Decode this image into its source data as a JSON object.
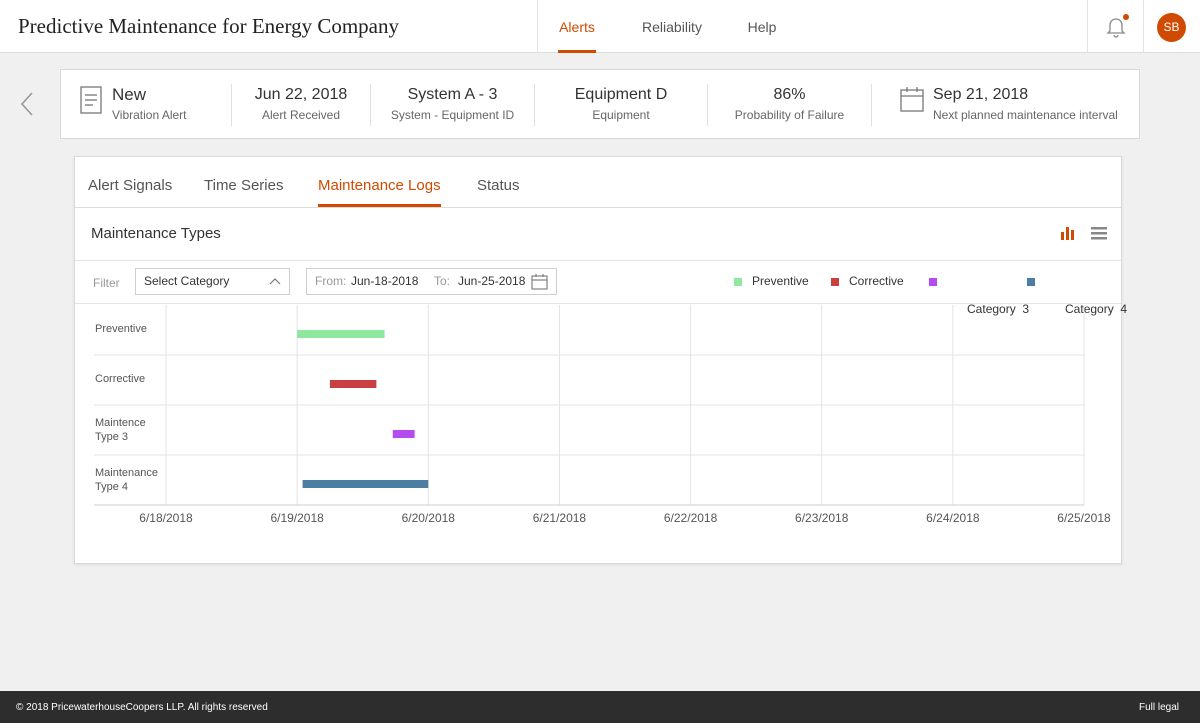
{
  "app": {
    "title": "Predictive Maintenance for Energy Company",
    "user_initials": "SB"
  },
  "nav": [
    {
      "label": "Alerts",
      "active": true
    },
    {
      "label": "Reliability",
      "active": false
    },
    {
      "label": "Help",
      "active": false
    }
  ],
  "summary": {
    "alert": {
      "value": "New",
      "label": "Vibration Alert"
    },
    "received": {
      "value": "Jun 22, 2018",
      "label": "Alert Received"
    },
    "system": {
      "value": "System A - 3",
      "label": "System - Equipment ID"
    },
    "equipment": {
      "value": "Equipment D",
      "label": "Equipment"
    },
    "probability": {
      "value": "86%",
      "label": "Probability of Failure"
    },
    "next": {
      "value": "Sep 21, 2018",
      "label": "Next planned maintenance interval"
    }
  },
  "tabs": [
    {
      "label": "Alert Signals",
      "active": false
    },
    {
      "label": "Time Series",
      "active": false
    },
    {
      "label": "Maintenance Logs",
      "active": true
    },
    {
      "label": "Status",
      "active": false
    }
  ],
  "section": {
    "title": "Maintenance Types"
  },
  "filter": {
    "label": "Filter",
    "category_placeholder": "Select Category",
    "from_label": "From:",
    "from_value": "Jun-18-2018",
    "to_label": "To:",
    "to_value": "Jun-25-2018"
  },
  "legend": [
    {
      "label": "Preventive",
      "color": "#8fe8a0"
    },
    {
      "label": "Corrective",
      "color": "#c94040"
    },
    {
      "label": "Category  3",
      "color": "#b44cf2"
    },
    {
      "label": "Category  4",
      "color": "#4c7ea4"
    }
  ],
  "chart_data": {
    "type": "bar",
    "orientation": "horizontal-range",
    "categories": [
      "Preventive",
      "Corrective",
      "Maintence Type 3",
      "Maintenance Type 4"
    ],
    "category_lines": [
      [
        "Preventive"
      ],
      [
        "Corrective"
      ],
      [
        "Maintence",
        "Type 3"
      ],
      [
        "Maintenance",
        "Type 4"
      ]
    ],
    "x_ticks": [
      "6/18/2018",
      "6/19/2018",
      "6/20/2018",
      "6/21/2018",
      "6/22/2018",
      "6/23/2018",
      "6/24/2018",
      "6/25/2018"
    ],
    "xlim": [
      "2018-06-18",
      "2018-06-25"
    ],
    "series": [
      {
        "name": "Preventive",
        "color": "#8fe8a0",
        "row": 0,
        "start": "2018-06-19 00:00",
        "end": "2018-06-19 16:00"
      },
      {
        "name": "Corrective",
        "color": "#c94040",
        "row": 1,
        "start": "2018-06-19 06:00",
        "end": "2018-06-19 14:30"
      },
      {
        "name": "Category  3",
        "color": "#b44cf2",
        "row": 2,
        "start": "2018-06-19 17:30",
        "end": "2018-06-19 21:30"
      },
      {
        "name": "Category  4",
        "color": "#4c7ea4",
        "row": 3,
        "start": "2018-06-19 01:00",
        "end": "2018-06-20 00:00"
      }
    ],
    "grid": true
  },
  "footer": {
    "copyright": "© 2018 PricewaterhouseCoopers LLP. All rights reserved",
    "legal": "Full legal"
  }
}
